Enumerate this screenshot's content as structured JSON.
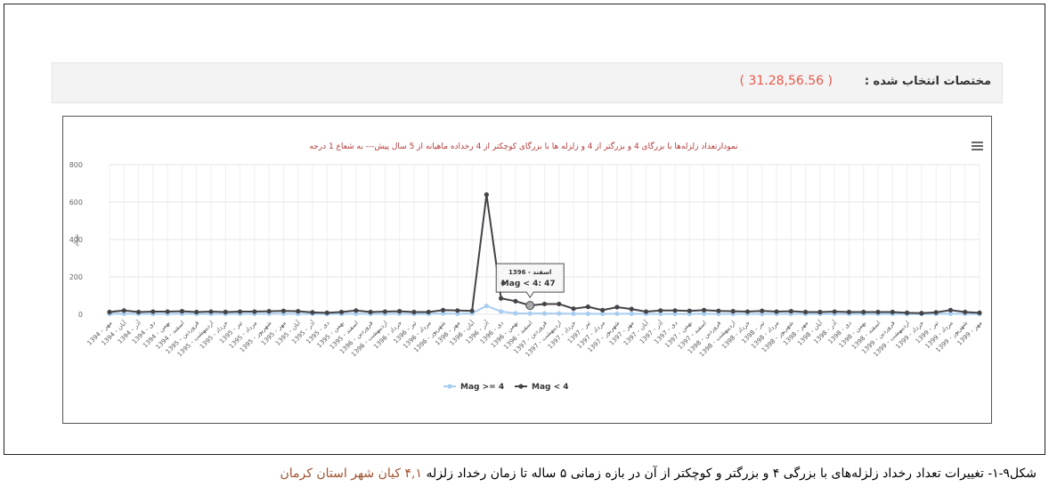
{
  "header": {
    "label": "مختصات انتخاب شده :",
    "value": "( 31.28,56.56 )"
  },
  "chart_data": {
    "type": "line",
    "title": "نمودارتعداد زلزله‌ها با بزرگای 4 و بزرگتر از 4 و زلزله ها با بزرگای کوچکتر از 4 رخداده ماهیانه از 5 سال پیش--- به شعاع 1 درجه",
    "ylabel": "تعداد",
    "categories": [
      "1394 - مهر",
      "1394 - آبان",
      "1394 - آذر",
      "1394 - دی",
      "1394 - بهمن",
      "1394 - اسفند",
      "1395 - فروردین",
      "1395 - اردیبهشت",
      "1395 - خرداد",
      "1395 - تیر",
      "1395 - مرداد",
      "1395 - شهریور",
      "1395 - مهر",
      "1395 - آبان",
      "1395 - آذر",
      "1395 - دی",
      "1395 - بهمن",
      "1395 - اسفند",
      "1396 - فروردین",
      "1396 - اردیبهشت",
      "1396 - خرداد",
      "1396 - تیر",
      "1396 - مرداد",
      "1396 - شهریور",
      "1396 - مهر",
      "1396 - آبان",
      "1396 - آذر",
      "1396 - دی",
      "1396 - بهمن",
      "1396 - اسفند",
      "1397 - فروردین",
      "1397 - اردیبهشت",
      "1397 - خرداد",
      "1397 - تیر",
      "1397 - مرداد",
      "1397 - شهریور",
      "1397 - مهر",
      "1397 - آبان",
      "1397 - آذر",
      "1397 - دی",
      "1397 - بهمن",
      "1397 - اسفند",
      "1398 - فروردین",
      "1398 - اردیبهشت",
      "1398 - خرداد",
      "1398 - تیر",
      "1398 - مرداد",
      "1398 - شهریور",
      "1398 - مهر",
      "1398 - آبان",
      "1398 - آذر",
      "1398 - دی",
      "1398 - بهمن",
      "1398 - اسفند",
      "1399 - فروردین",
      "1399 - اردیبهشت",
      "1399 - خرداد",
      "1399 - تیر",
      "1399 - مرداد",
      "1399 - شهریور",
      "1399 - مهر"
    ],
    "series": [
      {
        "name": "Mag >= 4",
        "color": "#a8cdf0",
        "values": [
          2,
          3,
          2,
          2,
          2,
          3,
          2,
          2,
          2,
          2,
          2,
          3,
          3,
          2,
          2,
          1,
          2,
          3,
          2,
          2,
          3,
          2,
          2,
          4,
          3,
          5,
          45,
          15,
          5,
          4,
          4,
          4,
          3,
          3,
          2,
          3,
          3,
          2,
          2,
          2,
          2,
          3,
          2,
          2,
          2,
          2,
          2,
          2,
          2,
          2,
          2,
          2,
          2,
          2,
          2,
          1,
          1,
          2,
          3,
          2,
          1
        ]
      },
      {
        "name": "Mag < 4",
        "color": "#434348",
        "values": [
          12,
          20,
          12,
          14,
          14,
          16,
          12,
          14,
          12,
          14,
          14,
          16,
          18,
          16,
          10,
          8,
          12,
          20,
          12,
          14,
          16,
          12,
          12,
          22,
          20,
          18,
          640,
          85,
          70,
          47,
          55,
          55,
          30,
          40,
          22,
          38,
          28,
          14,
          20,
          20,
          18,
          22,
          18,
          16,
          14,
          18,
          14,
          16,
          12,
          12,
          14,
          12,
          12,
          12,
          12,
          8,
          6,
          10,
          22,
          12,
          8
        ]
      }
    ],
    "ylim": [
      0,
      800
    ],
    "yticks": [
      0,
      200,
      400,
      600,
      800
    ],
    "grid": true,
    "tooltip": {
      "title": "1396 - اسفند",
      "label": "Mag < 4: 47"
    }
  },
  "caption": {
    "text": "شکل۹-۱- تغییرات تعداد رخداد زلزله‌های با بزرگی ۴ و بزرگتر و کوچکتر از آن در بازه زمانی ۵ ساله تا زمان رخداد زلزله",
    "highlight": "۴,۱ کیان شهر استان کرمان"
  }
}
